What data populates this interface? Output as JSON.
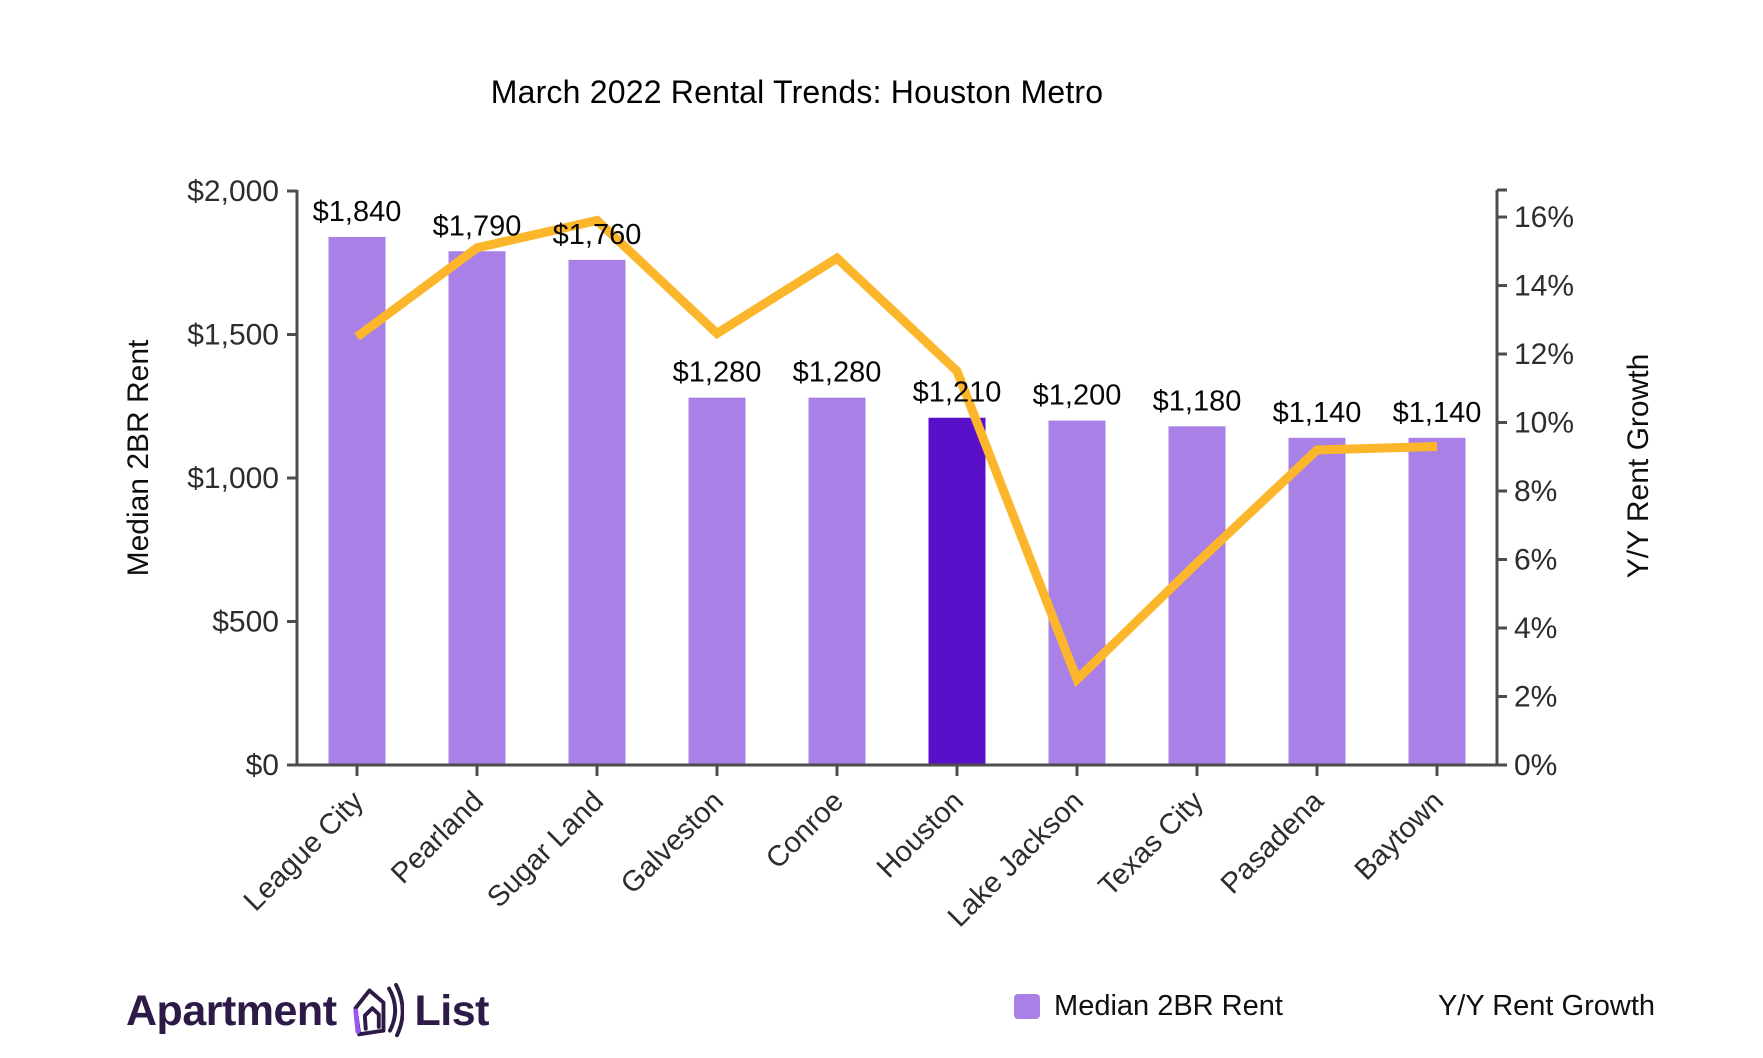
{
  "title": "March 2022 Rental Trends: Houston Metro",
  "chart_data": {
    "type": "bar",
    "subtype": "combo-bar-line-dual-axis",
    "title": "March 2022 Rental Trends: Houston Metro",
    "categories": [
      "League City",
      "Pearland",
      "Sugar Land",
      "Galveston",
      "Conroe",
      "Houston",
      "Lake Jackson",
      "Texas City",
      "Pasadena",
      "Baytown"
    ],
    "series": [
      {
        "name": "Median 2BR Rent",
        "type": "bar",
        "axis": "left",
        "values": [
          1840,
          1790,
          1760,
          1280,
          1280,
          1210,
          1200,
          1180,
          1140,
          1140
        ],
        "value_labels": [
          "$1,840",
          "$1,790",
          "$1,760",
          "$1,280",
          "$1,280",
          "$1,210",
          "$1,200",
          "$1,180",
          "$1,140",
          "$1,140"
        ],
        "highlight_category": "Houston",
        "highlight_index": 5
      },
      {
        "name": "Y/Y Rent Growth",
        "type": "line",
        "axis": "right",
        "values": [
          12.5,
          15.1,
          15.9,
          12.6,
          14.8,
          11.5,
          2.5,
          5.9,
          9.2,
          9.3
        ]
      }
    ],
    "left_axis": {
      "label": "Median 2BR Rent",
      "ylim": [
        0,
        2000
      ],
      "tick_values": [
        0,
        500,
        1000,
        1500,
        2000
      ],
      "tick_labels": [
        "$0",
        "$500",
        "$1,000",
        "$1,500",
        "$2,000"
      ]
    },
    "right_axis": {
      "label": "Y/Y Rent Growth",
      "ylim": [
        0,
        16.76
      ],
      "tick_values": [
        0,
        2,
        4,
        6,
        8,
        10,
        12,
        14,
        16
      ],
      "tick_labels": [
        "0%",
        "2%",
        "4%",
        "6%",
        "8%",
        "10%",
        "12%",
        "14%",
        "16%"
      ]
    },
    "x_tick_rotation_deg": -45,
    "grid": false,
    "legend_position": "bottom-right"
  },
  "legend": {
    "bar_label": "Median 2BR Rent",
    "line_label": "Y/Y Rent Growth"
  },
  "logo": {
    "word1": "Apartment",
    "word2": "List"
  },
  "colors": {
    "bar": "#a880e6",
    "bar_highlight": "#5a0fc8",
    "line": "#fcb62b",
    "axis": "#4d4d4d",
    "tick_text": "#2d2d2d",
    "title_text": "#000000",
    "logo": "#2e1a47",
    "logo_accent": "#9b57f3"
  }
}
